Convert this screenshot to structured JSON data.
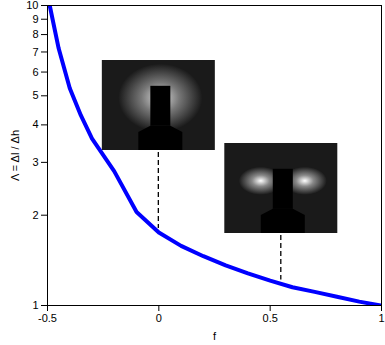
{
  "chart_data": {
    "type": "line",
    "x_label": "f",
    "y_label": "Λ = Δl / Δh",
    "x": [
      -0.49,
      -0.45,
      -0.4,
      -0.35,
      -0.3,
      -0.2,
      -0.1,
      0,
      0.1,
      0.2,
      0.3,
      0.4,
      0.5,
      0.6,
      0.7,
      0.8,
      0.9,
      1
    ],
    "series": [
      {
        "name": "Λ",
        "color": "#0000ff",
        "values": [
          10,
          7.2,
          5.3,
          4.3,
          3.6,
          2.8,
          2.05,
          1.75,
          1.58,
          1.46,
          1.36,
          1.28,
          1.21,
          1.15,
          1.11,
          1.07,
          1.03,
          1.0
        ]
      }
    ],
    "xlim": [
      -0.5,
      1
    ],
    "ylim": [
      1,
      10
    ],
    "xticks": [
      -0.5,
      0,
      0.5,
      1
    ],
    "yticks": [
      1,
      2,
      3,
      4,
      5,
      6,
      7,
      8,
      9,
      10
    ],
    "log": "y",
    "grid": false,
    "inset_markers_x": [
      0,
      0.55
    ]
  }
}
